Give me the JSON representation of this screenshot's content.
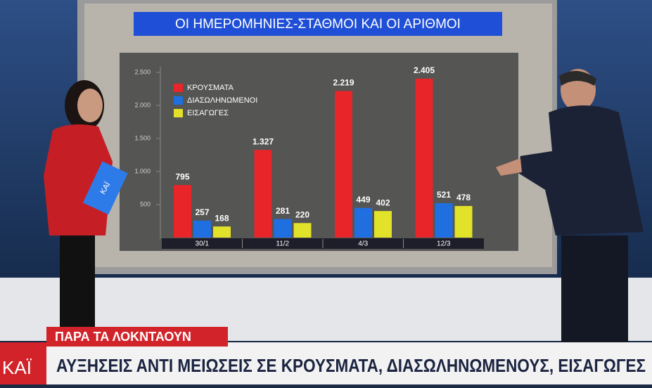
{
  "chart_data": {
    "type": "bar",
    "title": "ΟΙ ΗΜΕΡΟΜΗΝΙΕΣ-ΣΤΑΘΜΟΙ ΚΑΙ ΟΙ ΑΡΙΘΜΟΙ",
    "categories": [
      "30/1",
      "11/2",
      "4/3",
      "12/3"
    ],
    "series": [
      {
        "name": "ΚΡΟΥΣΜΑΤΑ",
        "color": "#e8262a",
        "values": [
          795,
          1327,
          2219,
          2405
        ],
        "value_labels": [
          "795",
          "1.327",
          "2.219",
          "2.405"
        ]
      },
      {
        "name": "ΔΙΑΣΩΛΗΝΩΜΕΝΟΙ",
        "color": "#1f6fe0",
        "values": [
          257,
          281,
          449,
          521
        ]
      },
      {
        "name": "ΕΙΣΑΓΩΓΕΣ",
        "color": "#e2e22a",
        "values": [
          168,
          220,
          402,
          478
        ]
      }
    ],
    "ylim": [
      0,
      2500
    ],
    "yticks": [
      500,
      {
        "value": 1000,
        "label": "1.000"
      },
      {
        "value": 1500,
        "label": "1.500"
      },
      {
        "value": 2000,
        "label": "2.000"
      },
      {
        "value": 2500,
        "label": "2.500"
      }
    ],
    "legend": "top-left"
  },
  "banner": {
    "tag": "ΠΑΡΑ ΤΑ ΛΟΚΝΤΑΟΥΝ",
    "headline": "ΑΥΞΗΣΕΙΣ ΑΝΤΙ ΜΕΙΩΣΕΙΣ ΣΕ ΚΡΟΥΣΜΑΤΑ, ΔΙΑΣΩΛΗΝΩΜΕΝΟΥΣ, ΕΙΣΑΓΩΓΕΣ",
    "logo": "ΚΑΪ"
  }
}
